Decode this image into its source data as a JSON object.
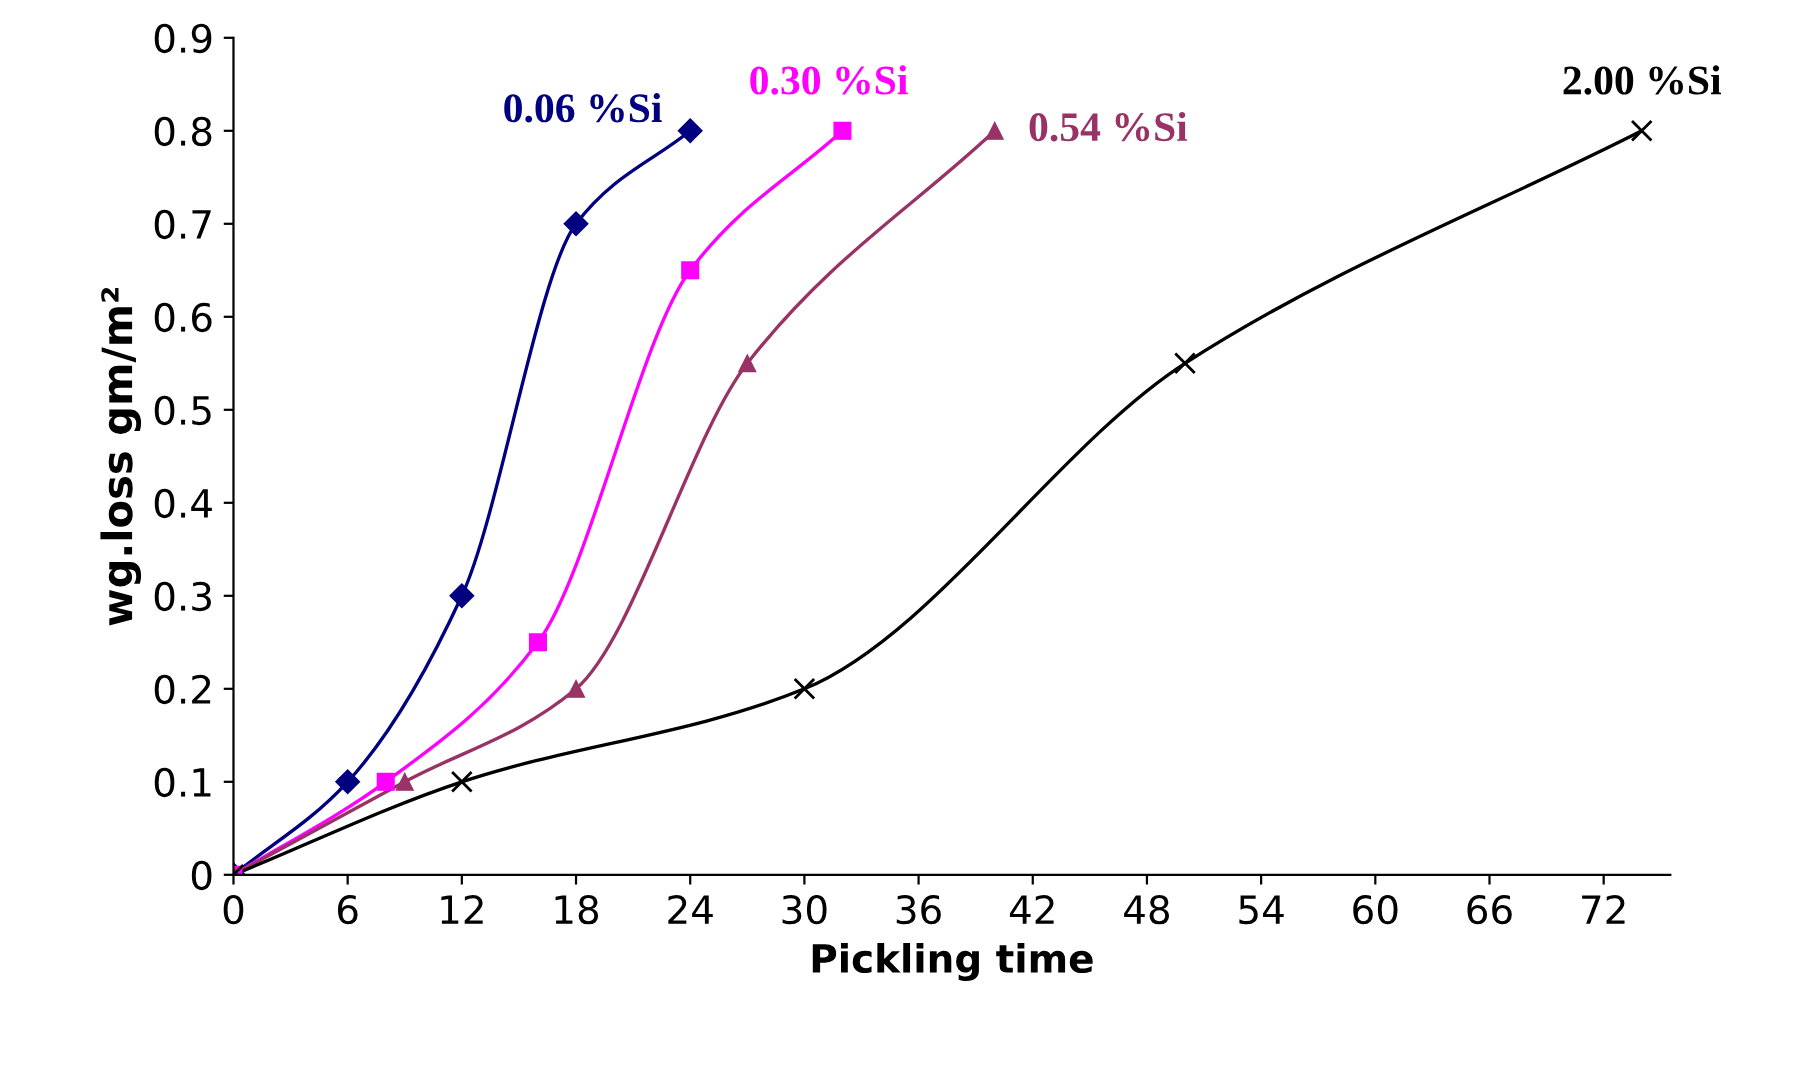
{
  "chart_data": {
    "type": "line",
    "xlabel": "Pickling time",
    "ylabel": "wg.loss gm/m²",
    "xlim": [
      0,
      75.5
    ],
    "ylim": [
      0,
      0.9
    ],
    "xticks": [
      0,
      6,
      12,
      18,
      24,
      30,
      36,
      42,
      48,
      54,
      60,
      66,
      72
    ],
    "yticks": [
      0,
      0.1,
      0.2,
      0.3,
      0.4,
      0.5,
      0.6,
      0.7,
      0.8,
      0.9
    ],
    "grid": false,
    "legend": false,
    "series": [
      {
        "name": "0.06 %Si",
        "color": "#000080",
        "marker": "diamond",
        "x": [
          0,
          6,
          12,
          18,
          24
        ],
        "values": [
          0,
          0.1,
          0.3,
          0.7,
          0.8
        ]
      },
      {
        "name": "0.30 %Si",
        "color": "#ff00ff",
        "marker": "square",
        "x": [
          0,
          8,
          16,
          24,
          32
        ],
        "values": [
          0,
          0.1,
          0.25,
          0.65,
          0.8
        ]
      },
      {
        "name": "0.54 %Si",
        "color": "#993366",
        "marker": "triangle",
        "x": [
          0,
          9,
          18,
          27,
          40
        ],
        "values": [
          0,
          0.1,
          0.2,
          0.55,
          0.8
        ]
      },
      {
        "name": "2.00 %Si",
        "color": "#000000",
        "marker": "cross",
        "x": [
          0,
          12,
          30,
          50,
          74
        ],
        "values": [
          0,
          0.1,
          0.2,
          0.55,
          0.8
        ]
      }
    ]
  }
}
